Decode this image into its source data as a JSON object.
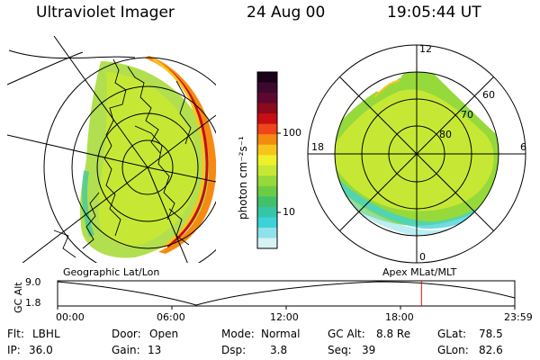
{
  "header": {
    "instrument": "Ultraviolet Imager",
    "date": "24 Aug 00",
    "time": "19:05:44 UT"
  },
  "geo_panel": {
    "label": "Geographic Lat/Lon"
  },
  "apex_panel": {
    "label": "Apex MLat/MLT",
    "mlt_labels": [
      "12",
      "18",
      "6",
      "0"
    ],
    "lat_labels": [
      "60",
      "70",
      "80"
    ]
  },
  "colorbar": {
    "unit_label": "photon cm⁻²s⁻¹",
    "ticks": [
      "100",
      "10"
    ],
    "colors": [
      "#1a0018",
      "#3c0a2e",
      "#5c0830",
      "#8c0a1e",
      "#c80e14",
      "#f0441a",
      "#f58a12",
      "#f8c41c",
      "#eef02a",
      "#c6e834",
      "#96d93a",
      "#6ccd45",
      "#42c06a",
      "#36c6a6",
      "#3cd2d8",
      "#8ee2ea",
      "#d7f1f4"
    ]
  },
  "timeline": {
    "ylabel": "GC Alt",
    "y_ticks": [
      "9.0",
      "1.8"
    ],
    "x_ticks": [
      "00:00",
      "06:00",
      "12:00",
      "18:00",
      "23:59"
    ],
    "current_hour": 19.1
  },
  "footer": [
    {
      "label": "Flt:",
      "value": "LBHL"
    },
    {
      "label": "IP:",
      "value": "36.0"
    },
    {
      "label": "Door:",
      "value": "Open"
    },
    {
      "label": "Gain:",
      "value": "13"
    },
    {
      "label": "Mode:",
      "value": "Normal"
    },
    {
      "label": "Dsp:",
      "value": "3.8"
    },
    {
      "label": "GC Alt:",
      "value": "8.8 Re"
    },
    {
      "label": "Seq:",
      "value": "39"
    },
    {
      "label": "GLat:",
      "value": "78.5"
    },
    {
      "label": "GLon:",
      "value": "82.6"
    }
  ]
}
